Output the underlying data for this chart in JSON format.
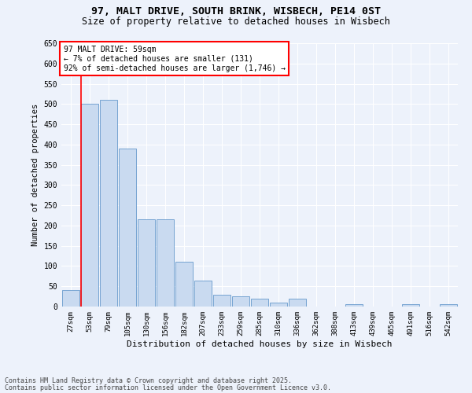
{
  "title_line1": "97, MALT DRIVE, SOUTH BRINK, WISBECH, PE14 0ST",
  "title_line2": "Size of property relative to detached houses in Wisbech",
  "xlabel": "Distribution of detached houses by size in Wisbech",
  "ylabel": "Number of detached properties",
  "bin_labels": [
    "27sqm",
    "53sqm",
    "79sqm",
    "105sqm",
    "130sqm",
    "156sqm",
    "182sqm",
    "207sqm",
    "233sqm",
    "259sqm",
    "285sqm",
    "310sqm",
    "336sqm",
    "362sqm",
    "388sqm",
    "413sqm",
    "439sqm",
    "465sqm",
    "491sqm",
    "516sqm",
    "542sqm"
  ],
  "bar_values": [
    40,
    500,
    510,
    390,
    215,
    215,
    110,
    65,
    30,
    25,
    20,
    10,
    20,
    0,
    0,
    5,
    0,
    0,
    5,
    0,
    5
  ],
  "bar_color": "#c9daf0",
  "bar_edge_color": "#6699cc",
  "red_line_bin": 1,
  "annotation_title": "97 MALT DRIVE: 59sqm",
  "annotation_line1": "← 7% of detached houses are smaller (131)",
  "annotation_line2": "92% of semi-detached houses are larger (1,746) →",
  "annotation_box_color": "white",
  "annotation_border_color": "red",
  "ylim": [
    0,
    650
  ],
  "yticks": [
    0,
    50,
    100,
    150,
    200,
    250,
    300,
    350,
    400,
    450,
    500,
    550,
    600,
    650
  ],
  "footer_line1": "Contains HM Land Registry data © Crown copyright and database right 2025.",
  "footer_line2": "Contains public sector information licensed under the Open Government Licence v3.0.",
  "background_color": "#edf2fb",
  "grid_color": "#ffffff"
}
